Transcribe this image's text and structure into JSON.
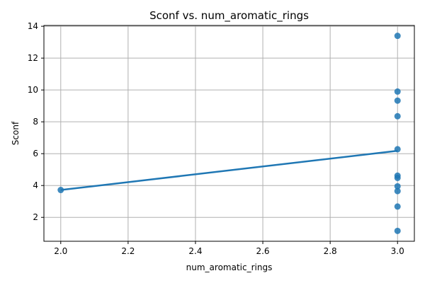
{
  "chart_data": {
    "type": "scatter",
    "title": "Sconf vs. num_aromatic_rings",
    "xlabel": "num_aromatic_rings",
    "ylabel": "Sconf",
    "xlim": [
      1.95,
      3.05
    ],
    "ylim": [
      0.5,
      14.05
    ],
    "xticks": [
      2.0,
      2.2,
      2.4,
      2.6,
      2.8,
      3.0
    ],
    "xtick_labels": [
      "2.0",
      "2.2",
      "2.4",
      "2.6",
      "2.8",
      "3.0"
    ],
    "yticks": [
      2,
      4,
      6,
      8,
      10,
      12,
      14
    ],
    "ytick_labels": [
      "2",
      "4",
      "6",
      "8",
      "10",
      "12",
      "14"
    ],
    "grid": true,
    "points": [
      {
        "x": 2.0,
        "y": 3.72
      },
      {
        "x": 3.0,
        "y": 13.4
      },
      {
        "x": 3.0,
        "y": 9.9
      },
      {
        "x": 3.0,
        "y": 9.33
      },
      {
        "x": 3.0,
        "y": 8.35
      },
      {
        "x": 3.0,
        "y": 6.28
      },
      {
        "x": 3.0,
        "y": 4.62
      },
      {
        "x": 3.0,
        "y": 4.48
      },
      {
        "x": 3.0,
        "y": 3.95
      },
      {
        "x": 3.0,
        "y": 3.65
      },
      {
        "x": 3.0,
        "y": 2.68
      },
      {
        "x": 3.0,
        "y": 1.15
      }
    ],
    "regression_line": {
      "x": [
        2.0,
        3.0
      ],
      "y": [
        3.72,
        6.18
      ]
    },
    "colors": {
      "points": "#1f77b4",
      "line": "#1f77b4",
      "grid": "#b0b0b0"
    }
  }
}
